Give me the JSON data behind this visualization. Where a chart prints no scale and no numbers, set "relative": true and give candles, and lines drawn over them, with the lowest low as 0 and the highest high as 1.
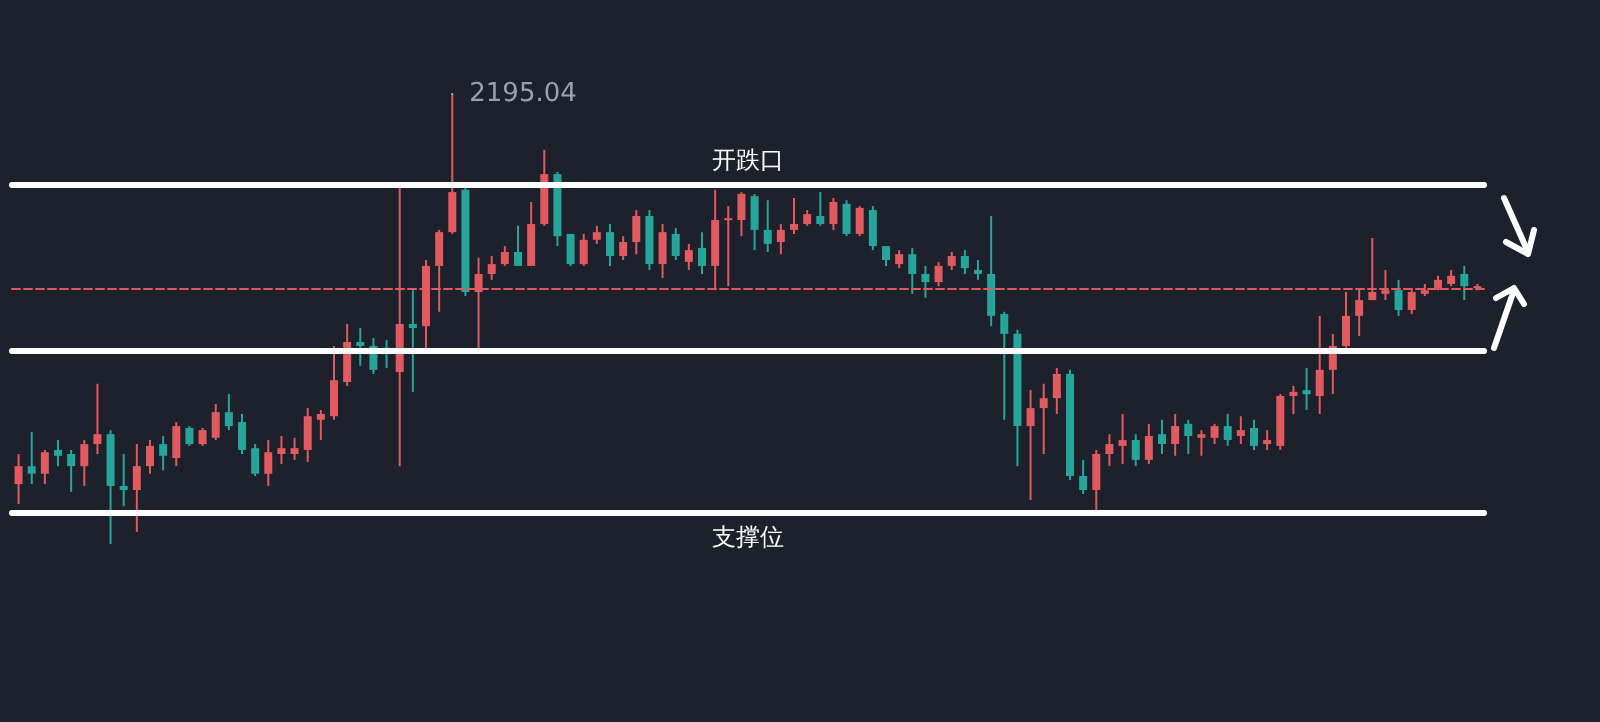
{
  "chart_data": {
    "type": "candlestick",
    "relative": true,
    "categories": [
      null,
      null,
      null,
      null,
      null,
      null,
      null,
      null,
      null,
      null,
      null,
      null,
      null,
      null,
      null,
      null,
      null,
      null,
      null,
      null,
      null,
      null,
      null,
      null,
      null,
      null,
      null,
      null,
      null,
      null,
      null,
      null,
      null,
      null,
      null,
      null,
      null,
      null,
      null,
      null,
      null,
      null,
      null,
      null,
      null,
      null,
      null,
      null,
      null,
      null,
      null,
      null,
      null,
      null,
      null,
      null,
      null,
      null,
      null,
      null,
      null,
      null,
      null,
      null,
      null,
      null,
      null,
      null,
      null,
      null,
      null,
      null,
      null,
      null,
      null,
      null,
      null,
      null,
      null,
      null,
      null,
      null,
      null,
      null,
      null,
      null,
      null,
      null,
      null,
      null,
      null,
      null,
      null,
      null,
      null,
      null,
      null,
      null,
      null,
      null,
      null,
      null,
      null,
      null,
      null,
      null,
      null,
      null,
      null,
      null,
      null,
      null
    ],
    "ohlc": [
      [
        0.133,
        0.2,
        0.089,
        0.173
      ],
      [
        0.173,
        0.249,
        0.133,
        0.156
      ],
      [
        0.156,
        0.209,
        0.133,
        0.204
      ],
      [
        0.209,
        0.231,
        0.173,
        0.196
      ],
      [
        0.2,
        0.209,
        0.116,
        0.173
      ],
      [
        0.173,
        0.231,
        0.129,
        0.222
      ],
      [
        0.222,
        0.356,
        0.2,
        0.244
      ],
      [
        0.244,
        0.253,
        0,
        0.129
      ],
      [
        0.129,
        0.2,
        0.084,
        0.12
      ],
      [
        0.12,
        0.222,
        0.027,
        0.173
      ],
      [
        0.173,
        0.231,
        0.156,
        0.218
      ],
      [
        0.222,
        0.24,
        0.164,
        0.196
      ],
      [
        0.191,
        0.271,
        0.173,
        0.262
      ],
      [
        0.258,
        0.262,
        0.218,
        0.222
      ],
      [
        0.222,
        0.258,
        0.218,
        0.253
      ],
      [
        0.236,
        0.311,
        0.231,
        0.293
      ],
      [
        0.293,
        0.333,
        0.253,
        0.262
      ],
      [
        0.271,
        0.289,
        0.2,
        0.209
      ],
      [
        0.213,
        0.222,
        0.151,
        0.156
      ],
      [
        0.156,
        0.231,
        0.129,
        0.204
      ],
      [
        0.2,
        0.24,
        0.178,
        0.213
      ],
      [
        0.2,
        0.236,
        0.187,
        0.213
      ],
      [
        0.209,
        0.302,
        0.182,
        0.284
      ],
      [
        0.276,
        0.298,
        0.231,
        0.289
      ],
      [
        0.284,
        0.44,
        0.276,
        0.364
      ],
      [
        0.36,
        0.489,
        0.351,
        0.449
      ],
      [
        0.449,
        0.48,
        0.396,
        0.44
      ],
      [
        0.44,
        0.458,
        0.378,
        0.387
      ],
      [
        0.436,
        0.453,
        0.391,
        0.422
      ],
      [
        0.382,
        0.796,
        0.173,
        0.489
      ],
      [
        0.489,
        0.564,
        0.338,
        0.48
      ],
      [
        0.484,
        0.631,
        0.422,
        0.618
      ],
      [
        0.618,
        0.698,
        0.516,
        0.693
      ],
      [
        0.693,
        1,
        0.689,
        0.782
      ],
      [
        0.787,
        0.796,
        0.551,
        0.56
      ],
      [
        0.56,
        0.636,
        0.431,
        0.6
      ],
      [
        0.6,
        0.64,
        0.587,
        0.622
      ],
      [
        0.622,
        0.662,
        0.618,
        0.649
      ],
      [
        0.649,
        0.707,
        0.618,
        0.618
      ],
      [
        0.618,
        0.76,
        0.618,
        0.711
      ],
      [
        0.711,
        0.876,
        0.707,
        0.822
      ],
      [
        0.822,
        0.827,
        0.662,
        0.684
      ],
      [
        0.689,
        0.689,
        0.618,
        0.622
      ],
      [
        0.622,
        0.689,
        0.618,
        0.676
      ],
      [
        0.676,
        0.707,
        0.667,
        0.693
      ],
      [
        0.693,
        0.711,
        0.618,
        0.64
      ],
      [
        0.64,
        0.684,
        0.631,
        0.671
      ],
      [
        0.671,
        0.742,
        0.644,
        0.729
      ],
      [
        0.729,
        0.742,
        0.609,
        0.622
      ],
      [
        0.622,
        0.711,
        0.591,
        0.693
      ],
      [
        0.689,
        0.702,
        0.631,
        0.64
      ],
      [
        0.627,
        0.667,
        0.609,
        0.653
      ],
      [
        0.658,
        0.693,
        0.6,
        0.618
      ],
      [
        0.618,
        0.787,
        0.564,
        0.72
      ],
      [
        0.72,
        0.751,
        0.573,
        0.724
      ],
      [
        0.72,
        0.782,
        0.684,
        0.778
      ],
      [
        0.773,
        0.778,
        0.653,
        0.698
      ],
      [
        0.698,
        0.764,
        0.649,
        0.667
      ],
      [
        0.671,
        0.711,
        0.644,
        0.698
      ],
      [
        0.698,
        0.769,
        0.689,
        0.711
      ],
      [
        0.711,
        0.742,
        0.707,
        0.733
      ],
      [
        0.729,
        0.782,
        0.707,
        0.711
      ],
      [
        0.711,
        0.769,
        0.698,
        0.76
      ],
      [
        0.756,
        0.764,
        0.684,
        0.689
      ],
      [
        0.689,
        0.751,
        0.684,
        0.747
      ],
      [
        0.742,
        0.751,
        0.653,
        0.662
      ],
      [
        0.662,
        0.662,
        0.618,
        0.631
      ],
      [
        0.622,
        0.653,
        0.613,
        0.644
      ],
      [
        0.644,
        0.658,
        0.556,
        0.6
      ],
      [
        0.6,
        0.618,
        0.547,
        0.582
      ],
      [
        0.582,
        0.627,
        0.573,
        0.618
      ],
      [
        0.618,
        0.649,
        0.609,
        0.64
      ],
      [
        0.64,
        0.653,
        0.6,
        0.613
      ],
      [
        0.609,
        0.631,
        0.587,
        0.6
      ],
      [
        0.6,
        0.729,
        0.484,
        0.507
      ],
      [
        0.511,
        0.516,
        0.276,
        0.467
      ],
      [
        0.467,
        0.476,
        0.173,
        0.262
      ],
      [
        0.262,
        0.342,
        0.098,
        0.302
      ],
      [
        0.302,
        0.356,
        0.2,
        0.324
      ],
      [
        0.324,
        0.391,
        0.289,
        0.378
      ],
      [
        0.378,
        0.387,
        0.142,
        0.151
      ],
      [
        0.151,
        0.187,
        0.111,
        0.12
      ],
      [
        0.12,
        0.209,
        0.067,
        0.2
      ],
      [
        0.2,
        0.244,
        0.173,
        0.222
      ],
      [
        0.218,
        0.289,
        0.178,
        0.231
      ],
      [
        0.231,
        0.244,
        0.173,
        0.187
      ],
      [
        0.187,
        0.267,
        0.178,
        0.24
      ],
      [
        0.244,
        0.276,
        0.2,
        0.222
      ],
      [
        0.222,
        0.289,
        0.196,
        0.262
      ],
      [
        0.267,
        0.276,
        0.2,
        0.24
      ],
      [
        0.236,
        0.253,
        0.196,
        0.244
      ],
      [
        0.236,
        0.267,
        0.222,
        0.262
      ],
      [
        0.262,
        0.289,
        0.218,
        0.231
      ],
      [
        0.24,
        0.284,
        0.222,
        0.253
      ],
      [
        0.258,
        0.276,
        0.209,
        0.218
      ],
      [
        0.222,
        0.253,
        0.209,
        0.231
      ],
      [
        0.218,
        0.333,
        0.209,
        0.329
      ],
      [
        0.329,
        0.351,
        0.289,
        0.338
      ],
      [
        0.342,
        0.391,
        0.298,
        0.333
      ],
      [
        0.329,
        0.507,
        0.289,
        0.387
      ],
      [
        0.387,
        0.467,
        0.333,
        0.44
      ],
      [
        0.44,
        0.56,
        0.436,
        0.507
      ],
      [
        0.507,
        0.569,
        0.462,
        0.542
      ],
      [
        0.542,
        0.68,
        0.542,
        0.56
      ],
      [
        0.556,
        0.609,
        0.542,
        0.564
      ],
      [
        0.564,
        0.587,
        0.507,
        0.52
      ],
      [
        0.52,
        0.564,
        0.511,
        0.56
      ],
      [
        0.556,
        0.578,
        0.551,
        0.564
      ],
      [
        0.569,
        0.596,
        0.564,
        0.587
      ],
      [
        0.578,
        0.609,
        0.573,
        0.596
      ],
      [
        0.6,
        0.618,
        0.542,
        0.573
      ],
      [
        0.569,
        0.578,
        0.564,
        0.573
      ]
    ],
    "ref_lines": [
      {
        "axis": "y",
        "value": 0.796,
        "label": "开跌口",
        "color": "#ffffff",
        "line_style": "solid"
      },
      {
        "axis": "y",
        "value": 0.067,
        "label": "支撑位",
        "color": "#ffffff",
        "line_style": "solid"
      },
      {
        "axis": "y",
        "value": 0.431,
        "color": "#ffffff",
        "line_style": "solid"
      },
      {
        "axis": "y",
        "value": 0.569,
        "color": "#e15a5f",
        "line_style": "dashed"
      }
    ],
    "annotations": [
      "2195.04"
    ]
  }
}
